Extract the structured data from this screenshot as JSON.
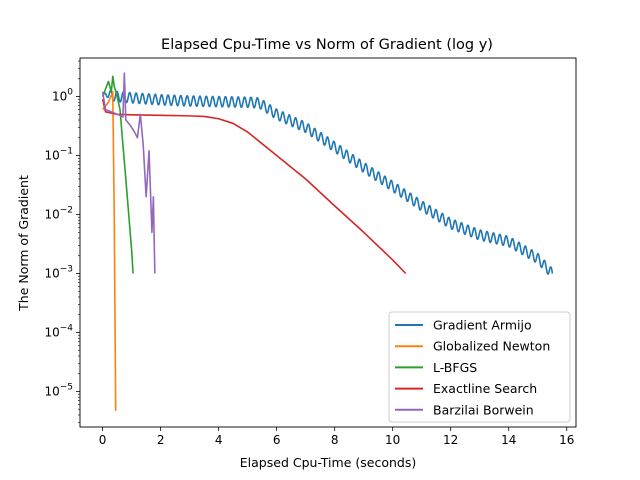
{
  "chart_data": {
    "type": "line",
    "title": "Elapsed Cpu-Time vs Norm of Gradient (log y)",
    "xlabel": "Elapsed Cpu-Time (seconds)",
    "ylabel": "The Norm of Gradient",
    "yscale": "log",
    "xlim": [
      -0.78,
      16.32
    ],
    "ylim": [
      2.5e-06,
      4.5
    ],
    "xticks": [
      0,
      2,
      4,
      6,
      8,
      10,
      12,
      14,
      16
    ],
    "xtick_labels": [
      "0",
      "2",
      "4",
      "6",
      "8",
      "10",
      "12",
      "14",
      "16"
    ],
    "yticks": [
      1e-05,
      0.0001,
      0.001,
      0.01,
      0.1,
      1
    ],
    "ytick_labels": [
      {
        "base": "10",
        "exp": "−5"
      },
      {
        "base": "10",
        "exp": "−4"
      },
      {
        "base": "10",
        "exp": "−3"
      },
      {
        "base": "10",
        "exp": "−2"
      },
      {
        "base": "10",
        "exp": "−1"
      },
      {
        "base": "10",
        "exp": "0"
      }
    ],
    "grid": false,
    "legend_position": "lower-right",
    "series": [
      {
        "name": "Gradient Armijo",
        "color": "#1f77b4",
        "oscillation": {
          "period": 0.22,
          "relative_amplitude": 0.22
        },
        "x": [
          0.0,
          0.1,
          0.5,
          1.0,
          2.0,
          3.0,
          4.0,
          5.0,
          5.4,
          6.0,
          7.0,
          8.0,
          9.0,
          10.0,
          11.0,
          12.0,
          13.0,
          14.0,
          15.0,
          15.5
        ],
        "y": [
          1.05,
          1.1,
          1.0,
          0.95,
          0.88,
          0.84,
          0.82,
          0.8,
          0.78,
          0.5,
          0.3,
          0.14,
          0.063,
          0.03,
          0.014,
          0.007,
          0.0045,
          0.0035,
          0.0018,
          0.001
        ]
      },
      {
        "name": "Globalized Newton",
        "color": "#ff7f0e",
        "x": [
          0.0,
          0.2,
          0.35,
          0.4,
          0.43,
          0.45
        ],
        "y": [
          0.6,
          0.8,
          1.2,
          0.01,
          0.0001,
          4.7e-06
        ]
      },
      {
        "name": "L-BFGS",
        "color": "#2ca02c",
        "x": [
          0.0,
          0.2,
          0.3,
          0.35,
          0.4,
          0.5,
          0.6,
          0.7,
          0.8,
          0.9,
          1.0,
          1.05
        ],
        "y": [
          1.0,
          1.8,
          1.2,
          2.2,
          1.5,
          1.0,
          0.6,
          0.15,
          0.04,
          0.01,
          0.0025,
          0.001
        ]
      },
      {
        "name": "Exactline Search",
        "color": "#d62728",
        "x": [
          0.0,
          0.1,
          0.5,
          1.0,
          2.0,
          3.0,
          3.5,
          4.0,
          4.5,
          5.0,
          6.0,
          7.0,
          8.0,
          9.0,
          10.0,
          10.45
        ],
        "y": [
          0.9,
          0.55,
          0.5,
          0.49,
          0.48,
          0.47,
          0.46,
          0.42,
          0.35,
          0.25,
          0.1,
          0.04,
          0.014,
          0.005,
          0.0017,
          0.001
        ]
      },
      {
        "name": "Barzilai Borwein",
        "color": "#9467bd",
        "x": [
          0.0,
          0.1,
          0.3,
          0.5,
          0.6,
          0.7,
          0.75,
          0.8,
          0.9,
          1.0,
          1.1,
          1.2,
          1.3,
          1.4,
          1.5,
          1.6,
          1.7,
          1.75,
          1.8
        ],
        "y": [
          1.2,
          0.6,
          0.55,
          0.5,
          0.48,
          0.45,
          2.5,
          0.4,
          0.35,
          0.3,
          0.25,
          0.2,
          0.5,
          0.15,
          0.02,
          0.12,
          0.005,
          0.02,
          0.001
        ]
      }
    ]
  }
}
